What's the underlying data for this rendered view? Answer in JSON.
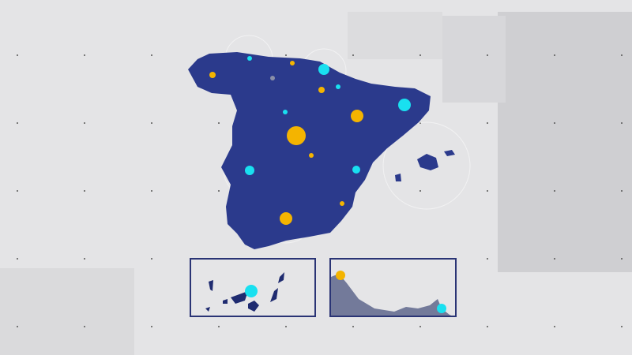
{
  "colors": {
    "background": "#e4e4e6",
    "land": "#2b3a8c",
    "frame": "#2a3475",
    "dot_yellow": "#f4b400",
    "dot_cyan": "#19e0f0",
    "dot_grey": "#8a8fa8",
    "coast_land": "#737a9a"
  },
  "insets": [
    {
      "label": ""
    },
    {
      "label": ""
    }
  ]
}
